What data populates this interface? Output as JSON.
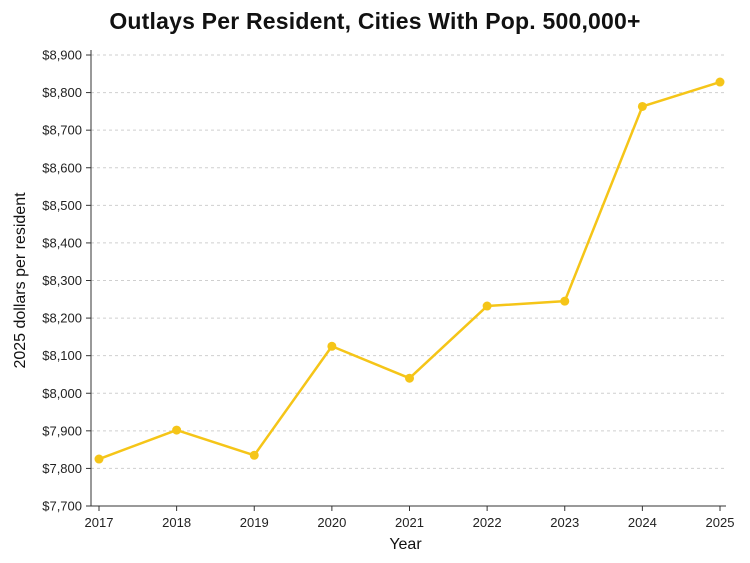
{
  "chart_data": {
    "type": "line",
    "title": "Outlays Per Resident, Cities With Pop. 500,000+",
    "xlabel": "Year",
    "ylabel": "2025 dollars per resident",
    "x": [
      2017,
      2018,
      2019,
      2020,
      2021,
      2022,
      2023,
      2024,
      2025
    ],
    "x_tick_labels": [
      "2017",
      "2018",
      "2019",
      "2020",
      "2021",
      "2022",
      "2023",
      "2024",
      "2025"
    ],
    "series": [
      {
        "values": [
          7825,
          7902,
          7835,
          8125,
          8040,
          8232,
          8245,
          8763,
          8828
        ]
      }
    ],
    "ylim": [
      7700,
      8900
    ],
    "y_ticks": [
      7700,
      7800,
      7900,
      8000,
      8100,
      8200,
      8300,
      8400,
      8500,
      8600,
      8700,
      8800,
      8900
    ],
    "y_tick_labels": [
      "$7,700",
      "$7,800",
      "$7,900",
      "$8,000",
      "$8,100",
      "$8,200",
      "$8,300",
      "$8,400",
      "$8,500",
      "$8,600",
      "$8,700",
      "$8,800",
      "$8,900"
    ],
    "grid": "horizontal dashed",
    "legend": "none",
    "colors": {
      "line": "#F5C518",
      "grid": "#cfcfcf",
      "axis": "#333333"
    }
  }
}
